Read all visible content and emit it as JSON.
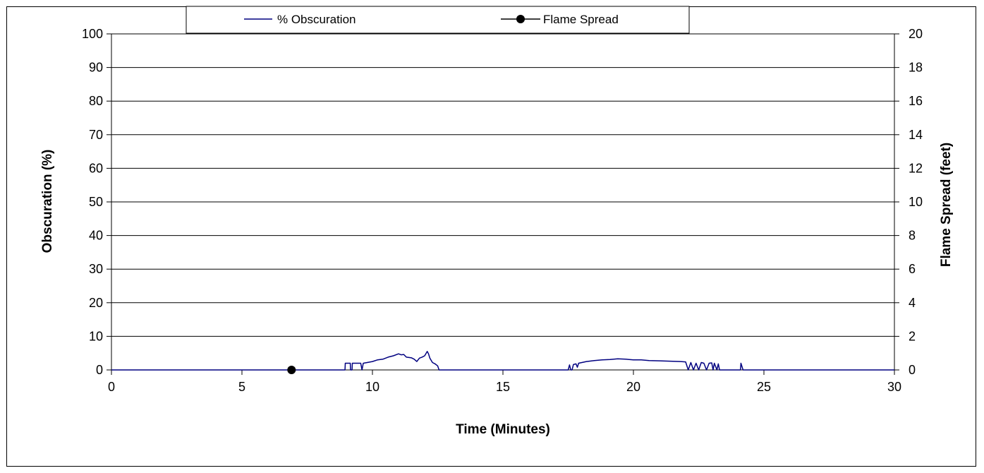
{
  "chart_data": {
    "type": "line",
    "title": "",
    "xlabel": "Time (Minutes)",
    "ylabel": "Obscuration (%)",
    "y2label": "Flame Spread (feet)",
    "xlim": [
      0,
      30
    ],
    "ylim": [
      0,
      100
    ],
    "y2lim": [
      0,
      20
    ],
    "xticks": [
      "0",
      "5",
      "10",
      "15",
      "20",
      "25",
      "30"
    ],
    "yticks": [
      "0",
      "10",
      "20",
      "30",
      "40",
      "50",
      "60",
      "70",
      "80",
      "90",
      "100"
    ],
    "y2ticks": [
      "0",
      "2",
      "4",
      "6",
      "8",
      "10",
      "12",
      "14",
      "16",
      "18",
      "20"
    ],
    "grid": "horizontal",
    "legend_position": "top",
    "series": [
      {
        "name": "% Obscuration",
        "axis": "left",
        "color": "#000080",
        "marker": "none",
        "points": [
          [
            0,
            0
          ],
          [
            8.95,
            0
          ],
          [
            8.96,
            2
          ],
          [
            9.15,
            2
          ],
          [
            9.16,
            0
          ],
          [
            9.22,
            0
          ],
          [
            9.23,
            2
          ],
          [
            9.5,
            2
          ],
          [
            9.55,
            2
          ],
          [
            9.6,
            0
          ],
          [
            9.65,
            2
          ],
          [
            9.8,
            2.2
          ],
          [
            10.0,
            2.5
          ],
          [
            10.2,
            3.0
          ],
          [
            10.4,
            3.2
          ],
          [
            10.6,
            3.8
          ],
          [
            10.8,
            4.2
          ],
          [
            11.0,
            4.8
          ],
          [
            11.1,
            4.5
          ],
          [
            11.2,
            4.6
          ],
          [
            11.3,
            3.8
          ],
          [
            11.5,
            3.6
          ],
          [
            11.6,
            3.2
          ],
          [
            11.7,
            2.5
          ],
          [
            11.8,
            3.5
          ],
          [
            11.9,
            3.8
          ],
          [
            12.0,
            4.2
          ],
          [
            12.1,
            5.5
          ],
          [
            12.15,
            4.8
          ],
          [
            12.2,
            3.5
          ],
          [
            12.3,
            2.2
          ],
          [
            12.4,
            1.8
          ],
          [
            12.5,
            1.2
          ],
          [
            12.55,
            0
          ],
          [
            17.5,
            0
          ],
          [
            17.55,
            1.5
          ],
          [
            17.6,
            0
          ],
          [
            17.65,
            0
          ],
          [
            17.7,
            1.6
          ],
          [
            17.8,
            1.8
          ],
          [
            17.85,
            0.8
          ],
          [
            17.9,
            2.0
          ],
          [
            18.2,
            2.5
          ],
          [
            18.5,
            2.8
          ],
          [
            18.8,
            3.0
          ],
          [
            19.1,
            3.1
          ],
          [
            19.4,
            3.3
          ],
          [
            19.7,
            3.2
          ],
          [
            20.0,
            3.0
          ],
          [
            20.3,
            3.0
          ],
          [
            20.6,
            2.8
          ],
          [
            21.0,
            2.7
          ],
          [
            21.4,
            2.6
          ],
          [
            21.8,
            2.5
          ],
          [
            22.0,
            2.4
          ],
          [
            22.1,
            0
          ],
          [
            22.2,
            2.2
          ],
          [
            22.3,
            0
          ],
          [
            22.4,
            2.0
          ],
          [
            22.5,
            0
          ],
          [
            22.6,
            2.2
          ],
          [
            22.7,
            2.0
          ],
          [
            22.8,
            0
          ],
          [
            22.9,
            2.0
          ],
          [
            23.0,
            2.1
          ],
          [
            23.05,
            0
          ],
          [
            23.1,
            2.0
          ],
          [
            23.2,
            0
          ],
          [
            23.25,
            1.8
          ],
          [
            23.3,
            0
          ],
          [
            24.1,
            0
          ],
          [
            24.12,
            2.0
          ],
          [
            24.2,
            0
          ],
          [
            30,
            0
          ]
        ]
      },
      {
        "name": "Flame Spread",
        "axis": "right",
        "color": "#000000",
        "marker": "circle",
        "points": [
          [
            6.9,
            0
          ]
        ]
      }
    ]
  }
}
